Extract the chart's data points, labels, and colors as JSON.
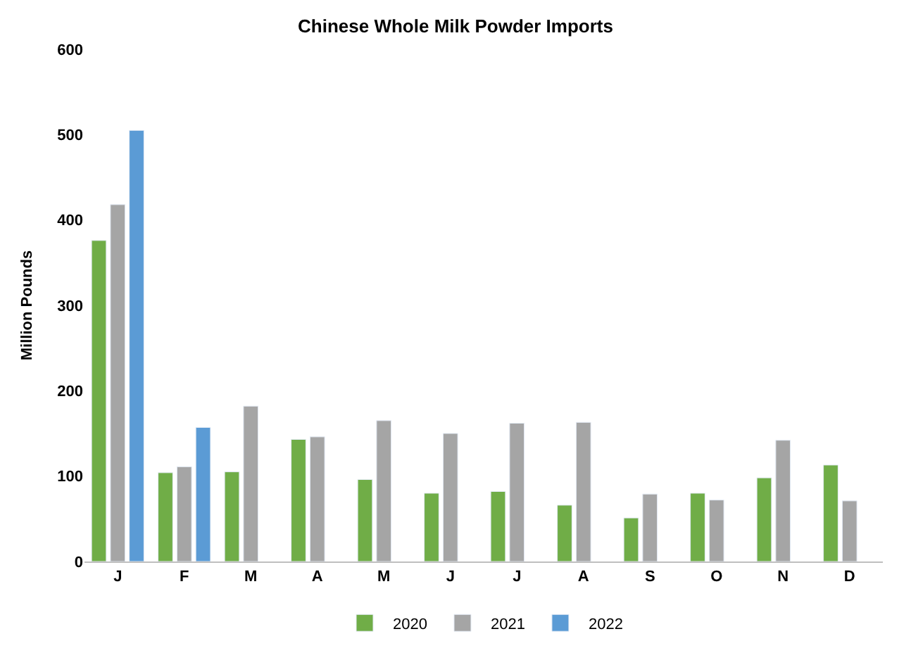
{
  "chart_data": {
    "type": "bar",
    "title": "Chinese Whole Milk Powder Imports",
    "ylabel": "Million Pounds",
    "categories": [
      "J",
      "F",
      "M",
      "A",
      "M",
      "J",
      "J",
      "A",
      "S",
      "O",
      "N",
      "D"
    ],
    "series": [
      {
        "name": "2020",
        "color": "#70ad47",
        "values": [
          376,
          104,
          105,
          143,
          96,
          80,
          82,
          66,
          51,
          80,
          98,
          113
        ]
      },
      {
        "name": "2021",
        "color": "#a5a5a5",
        "values": [
          418,
          111,
          182,
          146,
          165,
          150,
          162,
          163,
          79,
          72,
          142,
          71
        ]
      },
      {
        "name": "2022",
        "color": "#5b9bd5",
        "values": [
          505,
          157,
          null,
          null,
          null,
          null,
          null,
          null,
          null,
          null,
          null,
          null
        ]
      }
    ],
    "ylim": [
      0,
      600
    ],
    "yticks": [
      0,
      100,
      200,
      300,
      400,
      500,
      600
    ],
    "grid": false,
    "legend": "bottom"
  }
}
